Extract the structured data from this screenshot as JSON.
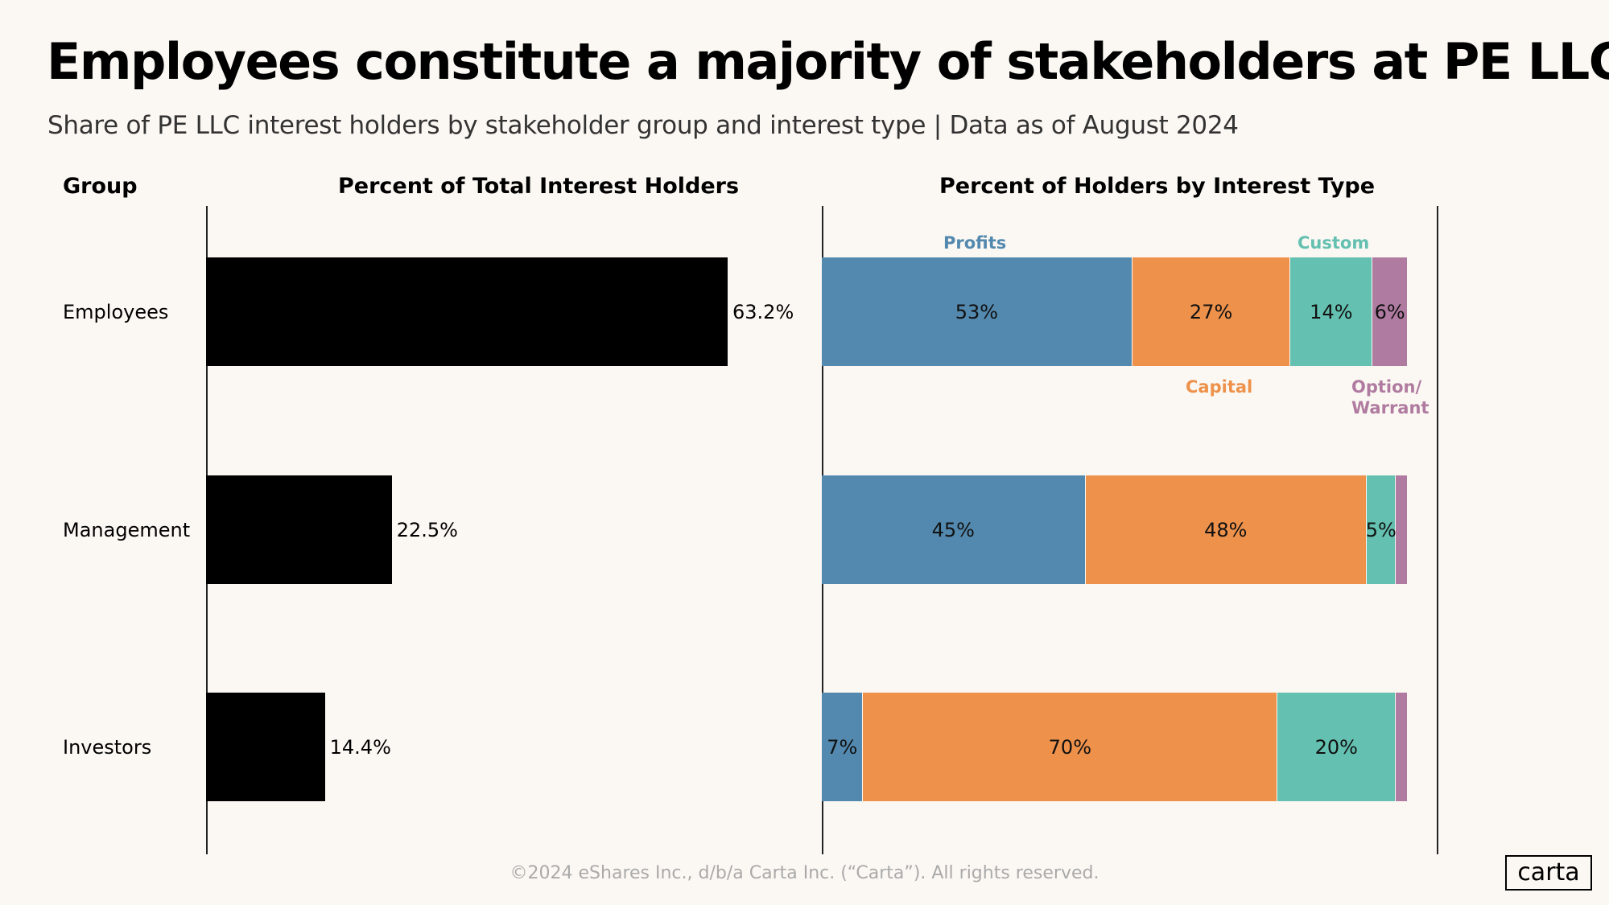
{
  "title": "Employees constitute a majority of stakeholders at PE LLCs",
  "subtitle": "Share of PE LLC interest holders by stakeholder group and interest type | Data as of August 2024",
  "footer": "©2024 eShares Inc., d/b/a Carta Inc. (“Carta”). All rights reserved.",
  "logo": "carta",
  "chart_data": [
    {
      "type": "bar",
      "orientation": "horizontal",
      "title": "Percent of Total Interest Holders",
      "category_header": "Group",
      "categories": [
        "Employees",
        "Management",
        "Investors"
      ],
      "values": [
        63.2,
        22.5,
        14.4
      ],
      "value_labels": [
        "63.2%",
        "22.5%",
        "14.4%"
      ],
      "xlim": [
        0,
        100
      ],
      "grid": false,
      "color": "#000000"
    },
    {
      "type": "bar",
      "stacked": true,
      "orientation": "horizontal",
      "title": "Percent of Holders by Interest Type",
      "categories": [
        "Employees",
        "Management",
        "Investors"
      ],
      "xlim": [
        0,
        100
      ],
      "grid": false,
      "series": [
        {
          "name": "Profits",
          "color": "#5389ae",
          "values": [
            53,
            45,
            7
          ],
          "labels": [
            "53%",
            "45%",
            "7%"
          ]
        },
        {
          "name": "Capital",
          "color": "#ed914b",
          "values": [
            27,
            48,
            70
          ],
          "labels": [
            "27%",
            "48%",
            "70%"
          ]
        },
        {
          "name": "Custom",
          "color": "#64c0b0",
          "values": [
            14,
            5,
            20
          ],
          "labels": [
            "14%",
            "5%",
            "20%"
          ]
        },
        {
          "name": "Option/\nWarrant",
          "color": "#b07ba0",
          "values": [
            6,
            2,
            2
          ],
          "labels": [
            "6%",
            "",
            ""
          ]
        }
      ]
    }
  ]
}
